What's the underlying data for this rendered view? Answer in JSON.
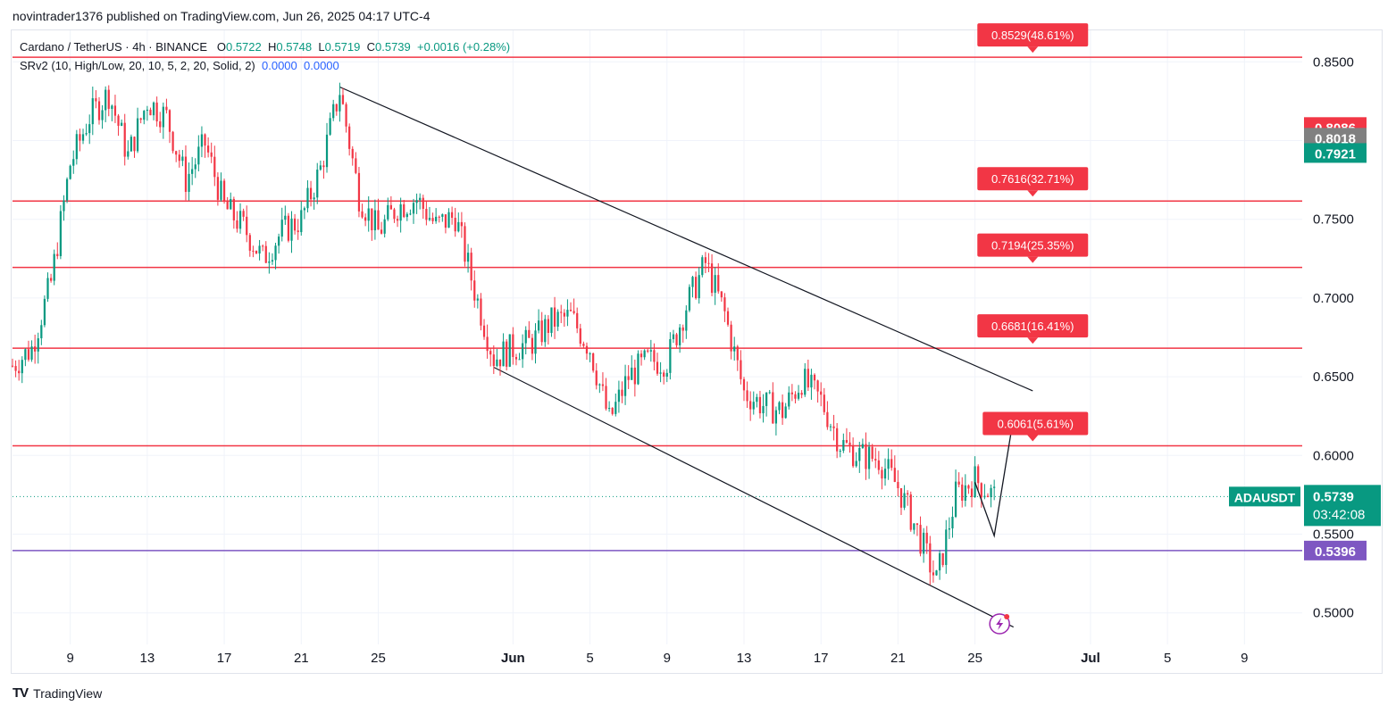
{
  "header": {
    "published": "novintrader1376 published on TradingView.com, Jun 26, 2025 04:17 UTC-4"
  },
  "legend": {
    "symbol": "Cardano / TetherUS · 4h · BINANCE",
    "o_label": "O",
    "o_value": "0.5722",
    "h_label": "H",
    "h_value": "0.5748",
    "l_label": "L",
    "l_value": "0.5719",
    "c_label": "C",
    "c_value": "0.5739",
    "change": "+0.0016 (+0.28%)",
    "indicator": "SRv2 (10, High/Low, 20, 10, 5, 2, 20, Solid, 2)",
    "ind_v1": "0.0000",
    "ind_v2": "0.0000"
  },
  "footer": {
    "brand": "TradingView",
    "logo_text": "TV"
  },
  "colors": {
    "up": "#089981",
    "down": "#f23645",
    "level_line": "#f23645",
    "support_line": "#7e57c2",
    "trend_line": "#131722",
    "grid": "#f0f3fa"
  },
  "chart_data": {
    "type": "candlestick",
    "symbol": "ADAUSDT",
    "interval": "4h",
    "ylim": [
      0.48,
      0.87
    ],
    "xlim": [
      "2025-05-06",
      "2025-07-12"
    ],
    "y_ticks": [
      "0.5000",
      "0.5500",
      "0.6000",
      "0.6500",
      "0.7000",
      "0.7500",
      "0.8000",
      "0.8500"
    ],
    "x_ticks": [
      {
        "date": "2025-05-09",
        "label": "9"
      },
      {
        "date": "2025-05-13",
        "label": "13"
      },
      {
        "date": "2025-05-17",
        "label": "17"
      },
      {
        "date": "2025-05-21",
        "label": "21"
      },
      {
        "date": "2025-05-25",
        "label": "25"
      },
      {
        "date": "2025-06-01",
        "label": "Jun"
      },
      {
        "date": "2025-06-05",
        "label": "5"
      },
      {
        "date": "2025-06-09",
        "label": "9"
      },
      {
        "date": "2025-06-13",
        "label": "13"
      },
      {
        "date": "2025-06-17",
        "label": "17"
      },
      {
        "date": "2025-06-21",
        "label": "21"
      },
      {
        "date": "2025-06-25",
        "label": "25"
      },
      {
        "date": "2025-07-01",
        "label": "Jul"
      },
      {
        "date": "2025-07-05",
        "label": "5"
      },
      {
        "date": "2025-07-09",
        "label": "9"
      }
    ],
    "price_path": [
      [
        "2025-05-06",
        0.657
      ],
      [
        "2025-05-07",
        0.668
      ],
      [
        "2025-05-08",
        0.71
      ],
      [
        "2025-05-09",
        0.785
      ],
      [
        "2025-05-10",
        0.815
      ],
      [
        "2025-05-11",
        0.83
      ],
      [
        "2025-05-12",
        0.79
      ],
      [
        "2025-05-13",
        0.825
      ],
      [
        "2025-05-14",
        0.815
      ],
      [
        "2025-05-15",
        0.775
      ],
      [
        "2025-05-16",
        0.798
      ],
      [
        "2025-05-17",
        0.758
      ],
      [
        "2025-05-18",
        0.745
      ],
      [
        "2025-05-19",
        0.725
      ],
      [
        "2025-05-20",
        0.742
      ],
      [
        "2025-05-21",
        0.75
      ],
      [
        "2025-05-22",
        0.782
      ],
      [
        "2025-05-23",
        0.832
      ],
      [
        "2025-05-24",
        0.765
      ],
      [
        "2025-05-25",
        0.742
      ],
      [
        "2025-05-26",
        0.758
      ],
      [
        "2025-05-27",
        0.763
      ],
      [
        "2025-05-28",
        0.746
      ],
      [
        "2025-05-29",
        0.752
      ],
      [
        "2025-05-30",
        0.705
      ],
      [
        "2025-05-31",
        0.662
      ],
      [
        "2025-06-01",
        0.668
      ],
      [
        "2025-06-02",
        0.672
      ],
      [
        "2025-06-03",
        0.685
      ],
      [
        "2025-06-04",
        0.688
      ],
      [
        "2025-06-05",
        0.668
      ],
      [
        "2025-06-06",
        0.622
      ],
      [
        "2025-06-07",
        0.65
      ],
      [
        "2025-06-08",
        0.66
      ],
      [
        "2025-06-09",
        0.66
      ],
      [
        "2025-06-10",
        0.695
      ],
      [
        "2025-06-11",
        0.722
      ],
      [
        "2025-06-12",
        0.69
      ],
      [
        "2025-06-13",
        0.64
      ],
      [
        "2025-06-14",
        0.632
      ],
      [
        "2025-06-15",
        0.628
      ],
      [
        "2025-06-16",
        0.648
      ],
      [
        "2025-06-17",
        0.635
      ],
      [
        "2025-06-18",
        0.608
      ],
      [
        "2025-06-19",
        0.6
      ],
      [
        "2025-06-20",
        0.598
      ],
      [
        "2025-06-21",
        0.58
      ],
      [
        "2025-06-22",
        0.552
      ],
      [
        "2025-06-23",
        0.52
      ],
      [
        "2025-06-24",
        0.575
      ],
      [
        "2025-06-25",
        0.585
      ],
      [
        "2025-06-26",
        0.5739
      ]
    ],
    "last_candle": {
      "open": 0.5722,
      "high": 0.5748,
      "low": 0.5719,
      "close": 0.5739
    },
    "levels": [
      {
        "price": 0.8529,
        "label": "0.8529(48.61%)"
      },
      {
        "price": 0.7616,
        "label": "0.7616(32.71%)"
      },
      {
        "price": 0.7194,
        "label": "0.7194(25.35%)"
      },
      {
        "price": 0.6681,
        "label": "0.6681(16.41%)"
      },
      {
        "price": 0.6061,
        "label": "0.6061(5.61%)"
      }
    ],
    "support": {
      "price": 0.5396,
      "label": "0.5396"
    },
    "trend_lines": [
      {
        "from": [
          "2025-05-23",
          0.834
        ],
        "to": [
          "2025-06-28",
          0.641
        ]
      },
      {
        "from": [
          "2025-05-31",
          0.656
        ],
        "to": [
          "2025-06-27",
          0.491
        ]
      }
    ],
    "projection": [
      [
        "2025-06-25",
        0.583
      ],
      [
        "2025-06-26",
        0.549
      ],
      [
        "2025-06-27",
        0.624
      ]
    ],
    "price_tags": [
      {
        "price": 0.8086,
        "label": "0.8086",
        "color": "#f23645"
      },
      {
        "price": 0.8018,
        "label": "0.8018",
        "color": "#808080"
      },
      {
        "price": 0.7921,
        "label": "0.7921",
        "color": "#089981"
      }
    ],
    "current": {
      "price": 0.5739,
      "label": "0.5739",
      "symbol_label": "ADAUSDT",
      "countdown": "03:42:08"
    }
  }
}
